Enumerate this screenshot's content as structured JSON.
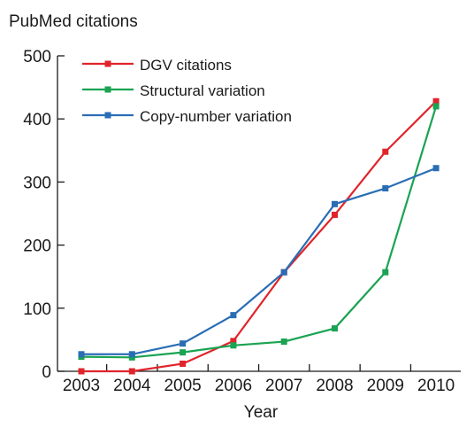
{
  "chart_data": {
    "type": "line",
    "title": "PubMed citations",
    "xlabel": "Year",
    "ylabel": "",
    "categories": [
      "2003",
      "2004",
      "2005",
      "2006",
      "2007",
      "2008",
      "2009",
      "2010"
    ],
    "ylim": [
      0,
      500
    ],
    "yticks": [
      0,
      100,
      200,
      300,
      400,
      500
    ],
    "grid": false,
    "legend_position": "top-left",
    "series": [
      {
        "name": "DGV citations",
        "color": "#e0242b",
        "values": [
          0,
          0,
          12,
          48,
          157,
          248,
          348,
          428
        ]
      },
      {
        "name": "Structural variation",
        "color": "#1aa352",
        "values": [
          23,
          22,
          30,
          41,
          47,
          68,
          157,
          420
        ]
      },
      {
        "name": "Copy-number variation",
        "color": "#2a6db5",
        "values": [
          27,
          27,
          44,
          89,
          157,
          265,
          290,
          322
        ]
      }
    ]
  }
}
